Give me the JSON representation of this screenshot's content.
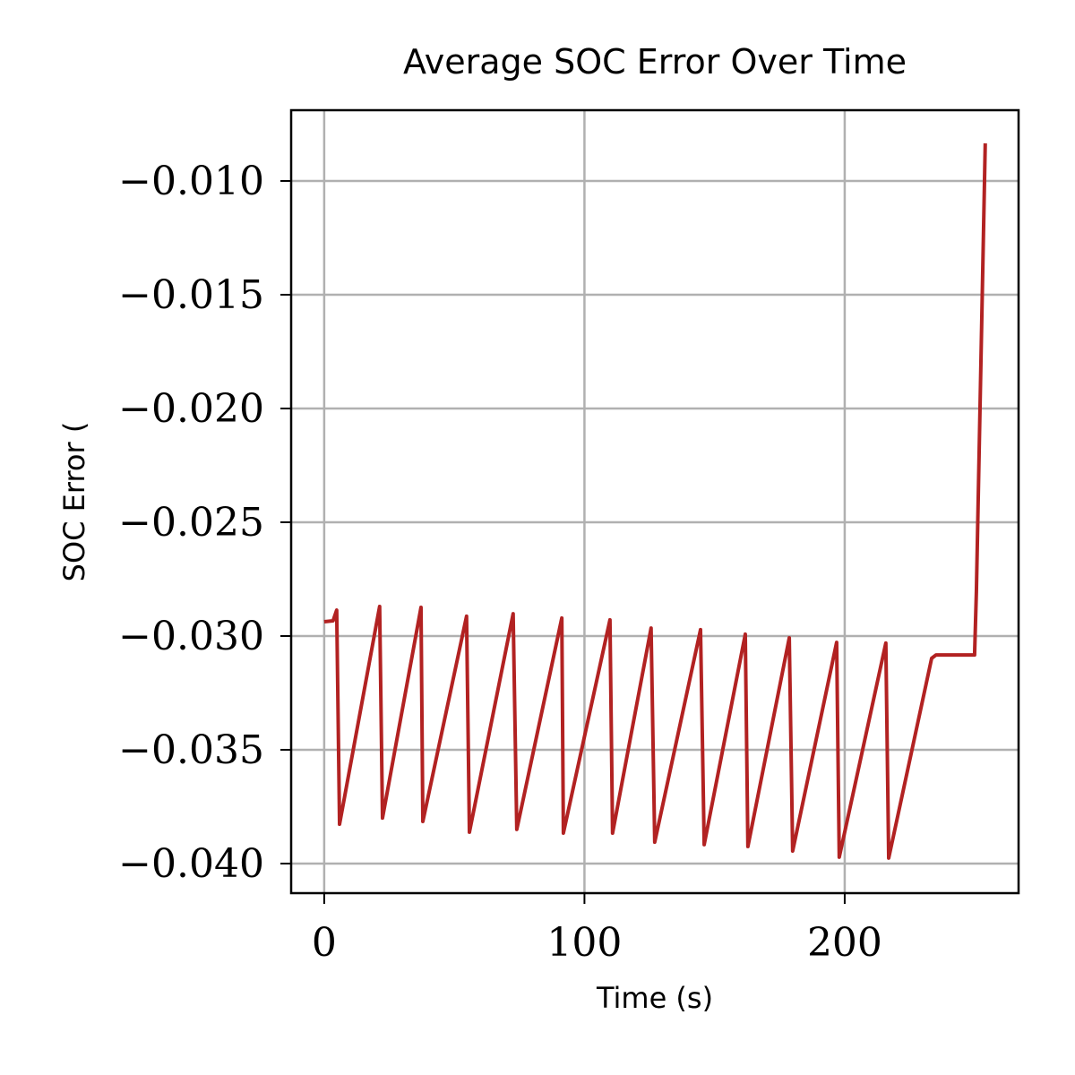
{
  "chart_data": {
    "type": "line",
    "title": "Average SOC Error Over Time",
    "xlabel": "Time (s)",
    "ylabel": "SOC Error (",
    "x": [
      0,
      3.4,
      4.8,
      5.9,
      21.3,
      22.4,
      37.2,
      37.9,
      54.7,
      55.8,
      72.6,
      74,
      91.3,
      91.9,
      109.8,
      110.8,
      125.6,
      127,
      144.6,
      146,
      161.8,
      162.8,
      178.7,
      180,
      196.9,
      197.9,
      215.8,
      216.9,
      233.4,
      235.1,
      249.9,
      250.6,
      254
    ],
    "series": [
      {
        "name": "SOC Error",
        "color": "#b22222",
        "values": [
          -0.02937,
          -0.02933,
          -0.02886,
          -0.03827,
          -0.0287,
          -0.038,
          -0.02874,
          -0.03815,
          -0.02913,
          -0.03862,
          -0.02902,
          -0.0385,
          -0.02921,
          -0.03866,
          -0.02929,
          -0.03866,
          -0.02965,
          -0.03906,
          -0.02972,
          -0.03917,
          -0.02992,
          -0.03925,
          -0.03008,
          -0.03945,
          -0.03028,
          -0.03972,
          -0.03031,
          -0.03976,
          -0.03098,
          -0.03083,
          -0.03083,
          -0.02803,
          -0.00835
        ]
      }
    ],
    "xlim": [
      -12.7,
      266.8
    ],
    "ylim": [
      -0.0413,
      -0.00689
    ],
    "xticks": [
      0,
      100,
      200
    ],
    "yticks": [
      {
        "value": -0.04,
        "label": "−0.040"
      },
      {
        "value": -0.035,
        "label": "−0.035"
      },
      {
        "value": -0.03,
        "label": "−0.030"
      },
      {
        "value": -0.025,
        "label": "−0.025"
      },
      {
        "value": -0.02,
        "label": "−0.020"
      },
      {
        "value": -0.015,
        "label": "−0.015"
      },
      {
        "value": -0.01,
        "label": "−0.010"
      }
    ],
    "grid": true
  }
}
